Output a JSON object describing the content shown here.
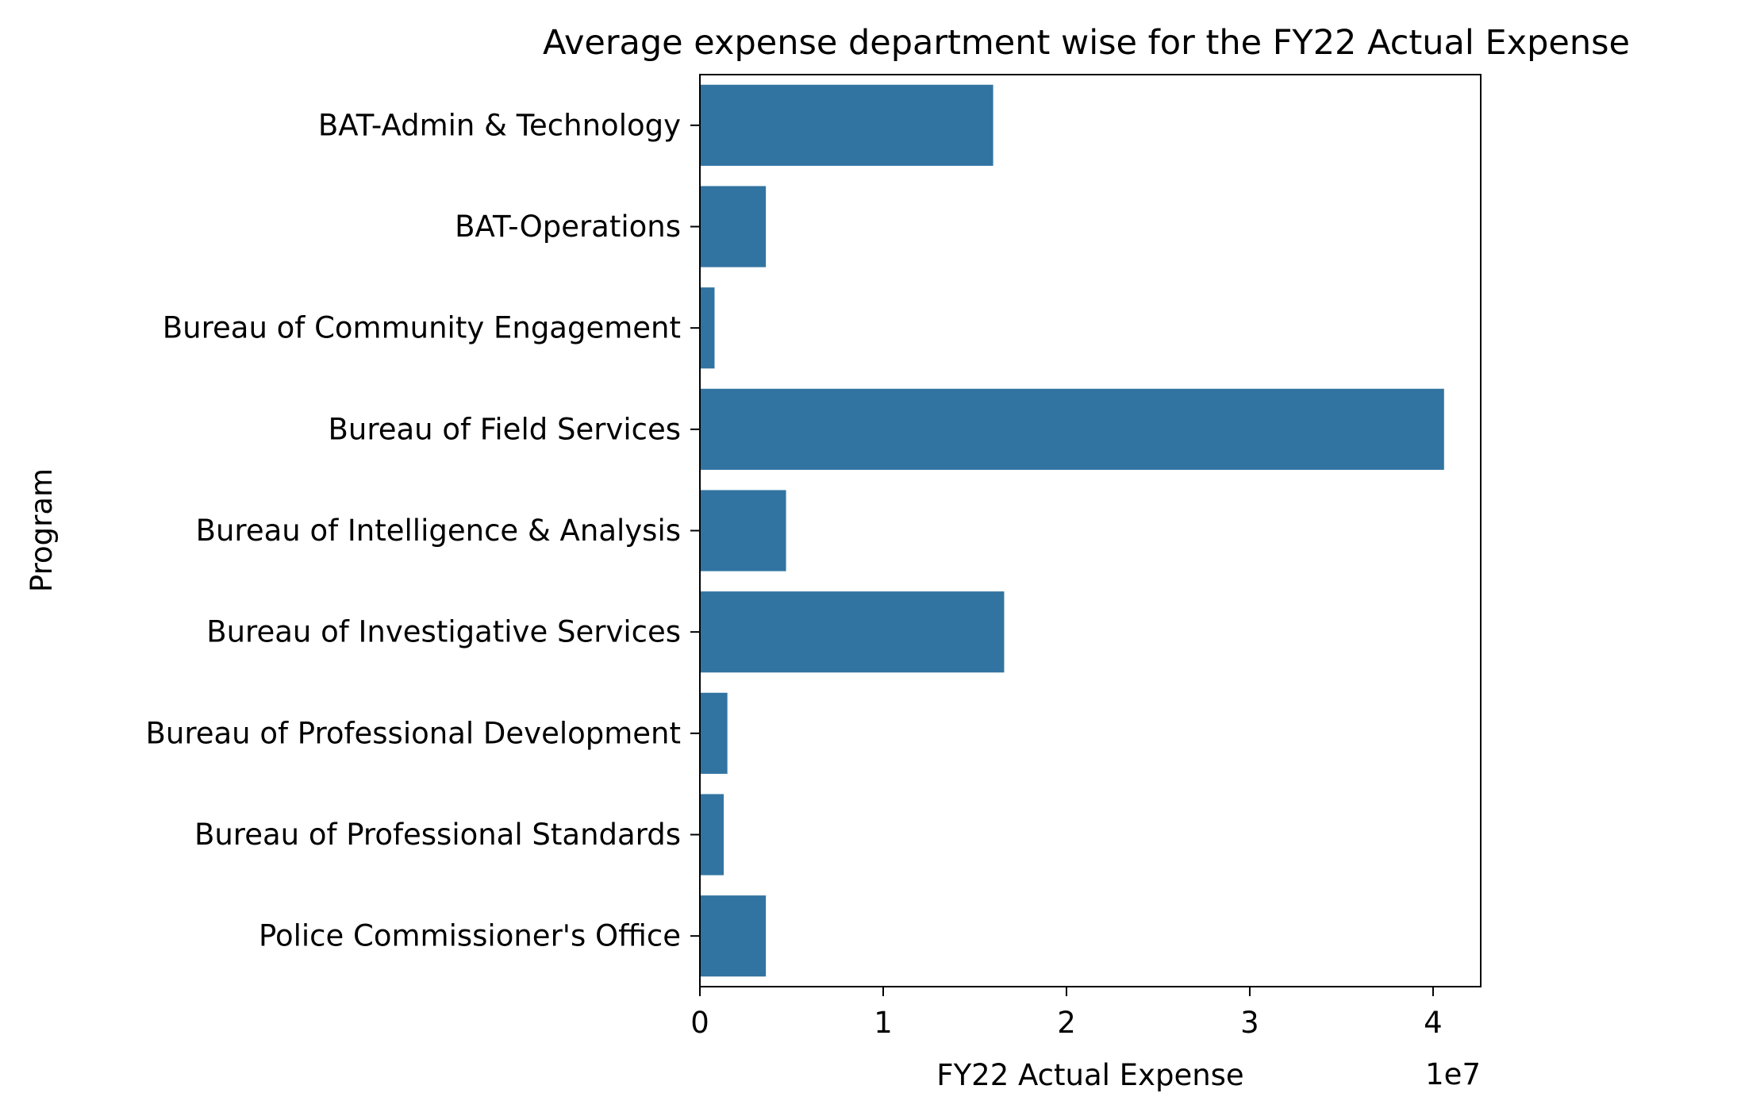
{
  "chart_data": {
    "type": "bar",
    "orientation": "horizontal",
    "title": "Average expense department wise for the FY22 Actual Expense",
    "xlabel": "FY22 Actual Expense",
    "ylabel": "Program",
    "x_offset_label": "1e7",
    "x_ticks": [
      0,
      1,
      2,
      3,
      4
    ],
    "x_tick_labels": [
      "0",
      "1",
      "2",
      "3",
      "4"
    ],
    "xlim": [
      0,
      4.26
    ],
    "x_scale_multiplier": 10000000,
    "categories": [
      "BAT-Admin & Technology",
      "BAT-Operations",
      "Bureau of Community Engagement",
      "Bureau of Field Services",
      "Bureau of Intelligence & Analysis",
      "Bureau of Investigative Services",
      "Bureau of Professional Development",
      "Bureau of Professional Standards",
      "Police Commissioner's Office"
    ],
    "values": [
      16000000,
      3600000,
      800000,
      40600000,
      4700000,
      16600000,
      1500000,
      1300000,
      3600000
    ],
    "bar_color": "#3274a1",
    "grid": false,
    "legend": false
  }
}
